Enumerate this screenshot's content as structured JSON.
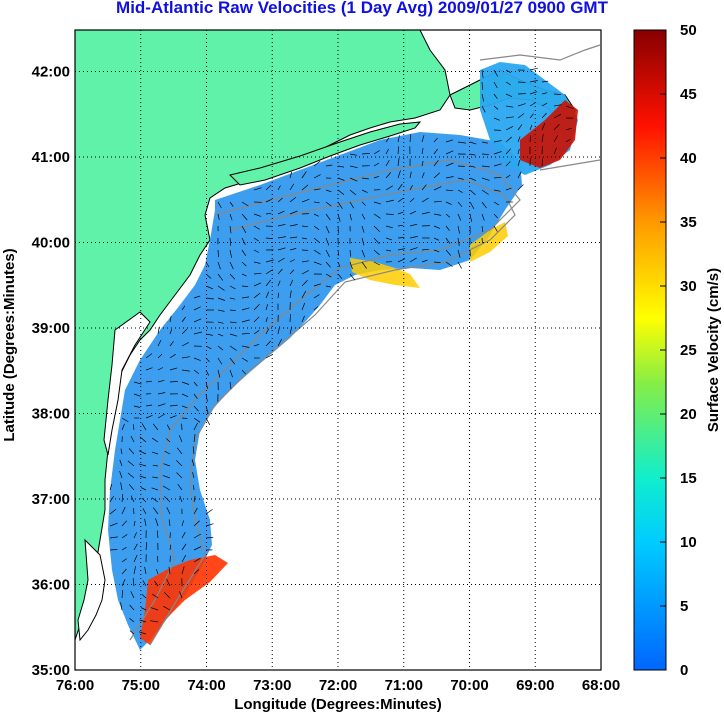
{
  "title": "Mid-Atlantic Raw Velocities (1 Day Avg) 2009/01/27 0900 GMT",
  "map": {
    "xlabel": "Longitude (Degrees:Minutes)",
    "ylabel": "Latitude (Degrees:Minutes)",
    "lon_ticks": [
      "76:00",
      "75:00",
      "74:00",
      "73:00",
      "72:00",
      "71:00",
      "70:00",
      "69:00",
      "68:00"
    ],
    "lat_ticks": [
      "35:00",
      "36:00",
      "37:00",
      "38:00",
      "39:00",
      "40:00",
      "41:00",
      "42:00"
    ],
    "colors": {
      "land": "#5ff2a8",
      "ocean": "#ffffff",
      "grid": "#000000"
    }
  },
  "colorbar": {
    "label": "Surface Velocity (cm/s)",
    "ticks": [
      "0",
      "5",
      "10",
      "15",
      "20",
      "25",
      "30",
      "35",
      "40",
      "45",
      "50"
    ],
    "range": [
      0,
      50
    ]
  }
}
